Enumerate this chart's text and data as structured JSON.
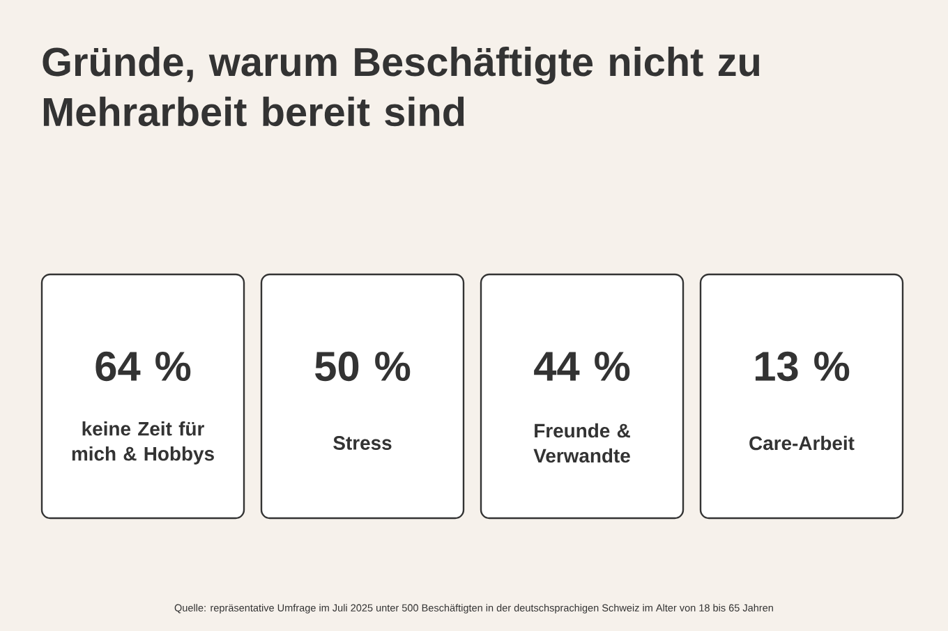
{
  "chart_data": {
    "type": "other",
    "title": "Gründe, warum Beschäftigte nicht zu Mehrarbeit bereit sind",
    "categories": [
      "keine Zeit für mich & Hobbys",
      "Stress",
      "Freunde & Verwandte",
      "Care-Arbeit"
    ],
    "values": [
      64,
      50,
      44,
      13
    ],
    "data_labels": true,
    "ylabel": "%",
    "annotations": [
      "Quelle: repräsentative Umfrage im Juli 2025 unter 500 Beschäftigten in der deutschsprachigen Schweiz im Alter von 18 bis 65 Jahren"
    ]
  }
}
